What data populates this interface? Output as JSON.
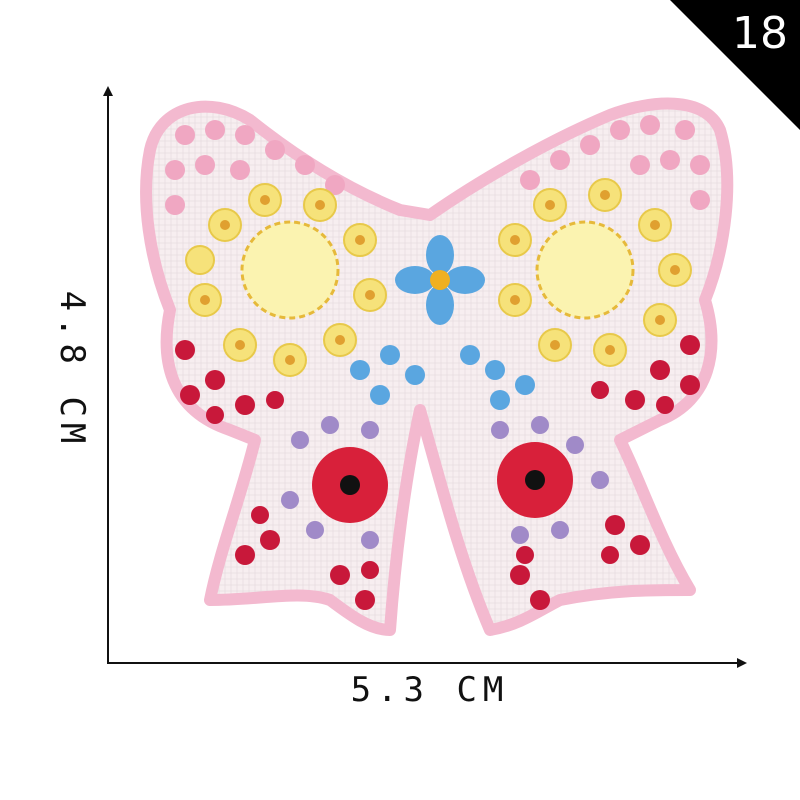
{
  "badge": {
    "number": "18"
  },
  "dimensions": {
    "width_label": "5.3 CM",
    "height_label": "4.8 CM"
  },
  "colors": {
    "badge_bg": "#000000",
    "axis": "#111111",
    "patch_border": "#f3b9cf",
    "pink_flower": "#f0a7c2",
    "yellow_flower": "#f6e27a",
    "blue_flower": "#5aa6e0",
    "red_flower": "#d8203a",
    "purple_flower": "#a08ac8"
  }
}
